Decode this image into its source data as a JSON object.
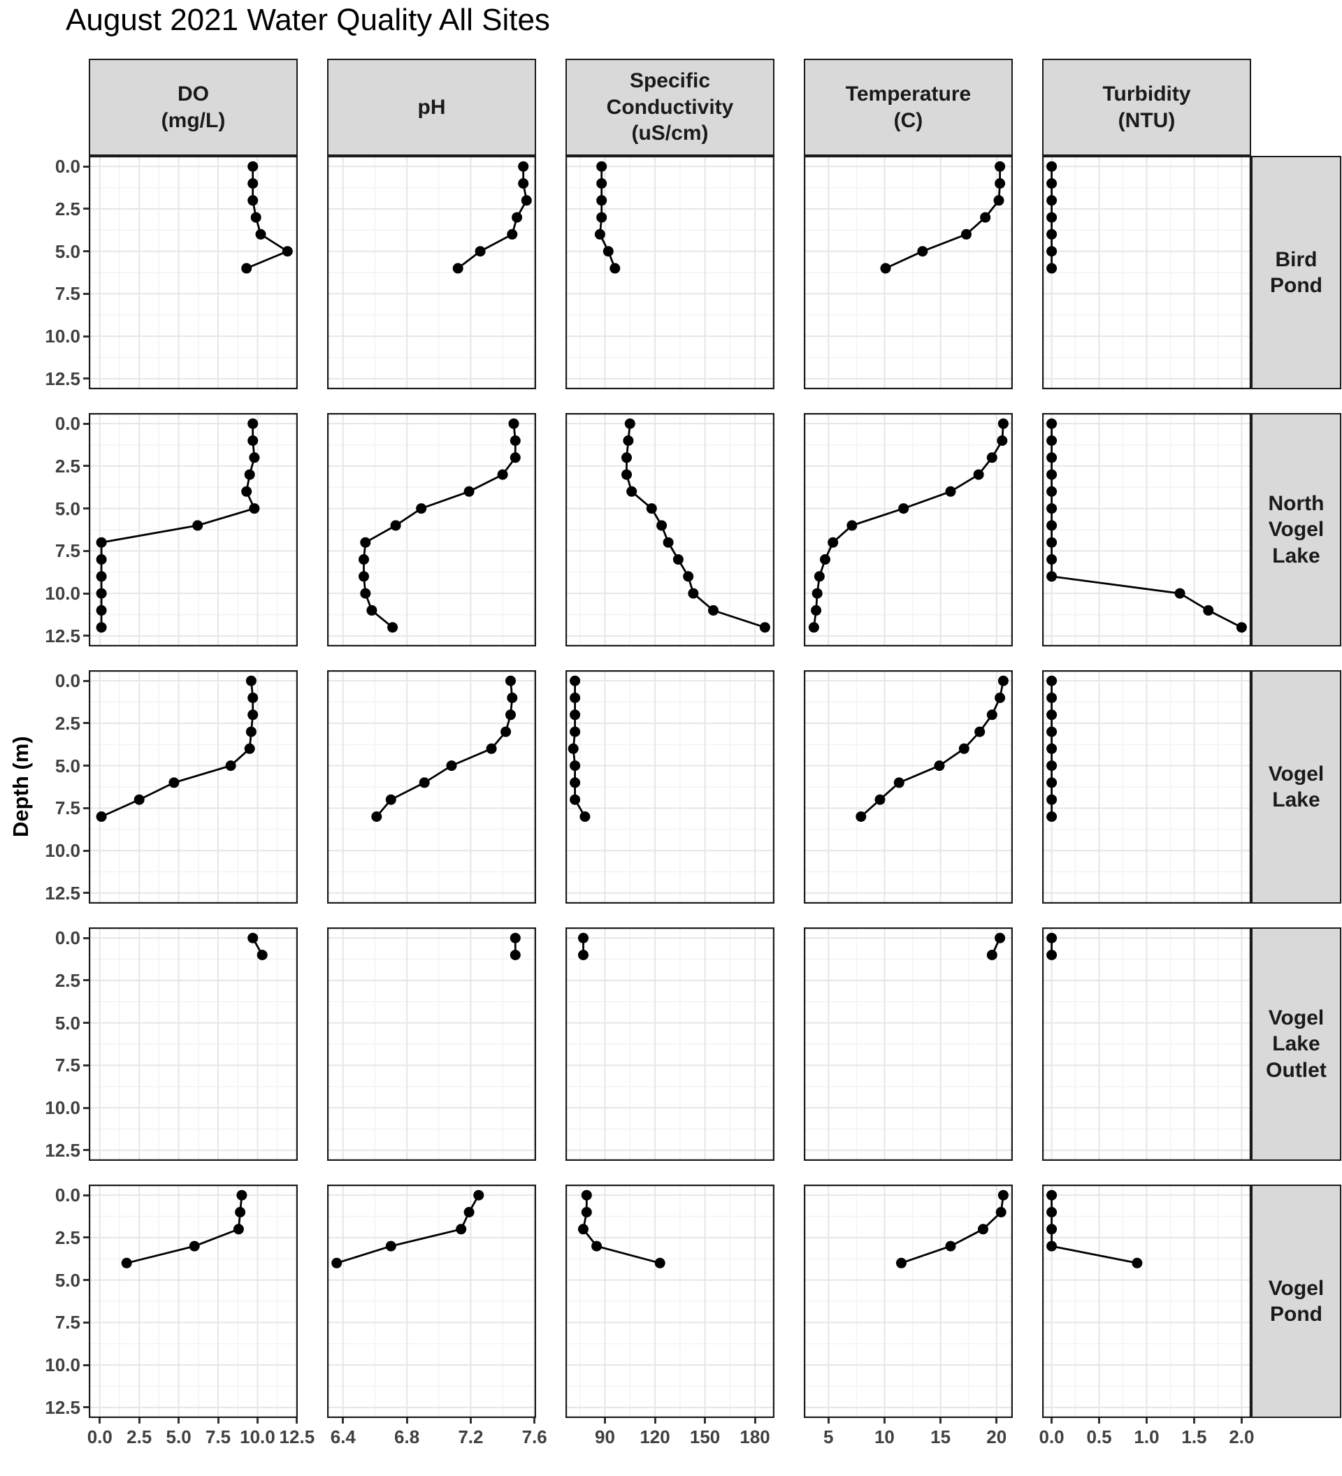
{
  "page": {
    "title": "August 2021 Water Quality All Sites"
  },
  "style": {
    "strip_bg": "#d9d9d9",
    "panel_bg": "#ffffff",
    "panel_border": "#1a1a1a",
    "grid_major": "#e6e6e6",
    "grid_minor": "#f4f4f4",
    "point_color": "#000000",
    "line_color": "#000000",
    "tick_label_color": "#404040"
  },
  "chart_data": {
    "type": "line",
    "title": "August 2021 Water Quality All Sites",
    "subtitle": "",
    "facet": "sites as rows, parameters as columns; depth profiles with points and connecting lines",
    "ylabel": "Depth (m)",
    "legend": "none",
    "grid": "major and minor gridlines on, light gray",
    "depth_axis": {
      "label": "Depth (m)",
      "ticks": [
        0.0,
        2.5,
        5.0,
        7.5,
        10.0,
        12.5
      ],
      "tick_labels": [
        "0.0",
        "2.5",
        "5.0",
        "7.5",
        "10.0",
        "12.5"
      ],
      "minor_ticks": [
        1.25,
        3.75,
        6.25,
        8.75,
        11.25
      ],
      "domain": [
        -0.625,
        13.125
      ],
      "inverted": true
    },
    "parameters": [
      {
        "key": "do",
        "label_lines": [
          "DO",
          "(mg/L)"
        ],
        "ticks": [
          0.0,
          2.5,
          5.0,
          7.5,
          10.0,
          12.5
        ],
        "tick_labels": [
          "0.0",
          "2.5",
          "5.0",
          "7.5",
          "10.0",
          "12.5"
        ],
        "minor_ticks": [
          1.25,
          3.75,
          6.25,
          8.75,
          11.25
        ],
        "domain": [
          -0.7,
          12.55
        ]
      },
      {
        "key": "ph",
        "label_lines": [
          "pH"
        ],
        "ticks": [
          6.4,
          6.8,
          7.2,
          7.6
        ],
        "tick_labels": [
          "6.4",
          "6.8",
          "7.2",
          "7.6"
        ],
        "minor_ticks": [
          6.6,
          7.0,
          7.4
        ],
        "domain": [
          6.3,
          7.61
        ]
      },
      {
        "key": "cond",
        "label_lines": [
          "Specific",
          "Conductivity",
          "(uS/cm)"
        ],
        "ticks": [
          90,
          120,
          150,
          180
        ],
        "tick_labels": [
          "90",
          "120",
          "150",
          "180"
        ],
        "minor_ticks": [
          75,
          105,
          135,
          165
        ],
        "domain": [
          66.3,
          191.7
        ]
      },
      {
        "key": "temp",
        "label_lines": [
          "Temperature",
          "(C)"
        ],
        "ticks": [
          5,
          10,
          15,
          20
        ],
        "tick_labels": [
          "5",
          "10",
          "15",
          "20"
        ],
        "minor_ticks": [
          7.5,
          12.5,
          17.5
        ],
        "domain": [
          2.8,
          21.45
        ]
      },
      {
        "key": "turb",
        "label_lines": [
          "Turbidity",
          "(NTU)"
        ],
        "ticks": [
          0.0,
          0.5,
          1.0,
          1.5,
          2.0
        ],
        "tick_labels": [
          "0.0",
          "0.5",
          "1.0",
          "1.5",
          "2.0"
        ],
        "minor_ticks": [
          0.25,
          0.75,
          1.25,
          1.75
        ],
        "domain": [
          -0.1,
          2.1
        ]
      }
    ],
    "sites": [
      {
        "name": "Bird Pond",
        "name_lines": [
          "Bird",
          "Pond"
        ],
        "depths": [
          0,
          1,
          2,
          3,
          4,
          5,
          6
        ],
        "do": [
          9.7,
          9.7,
          9.7,
          9.9,
          10.2,
          11.9,
          9.3
        ],
        "ph": [
          7.53,
          7.53,
          7.55,
          7.49,
          7.46,
          7.26,
          7.12
        ],
        "cond": [
          88,
          88,
          88,
          88,
          87,
          92,
          96
        ],
        "temp": [
          20.3,
          20.3,
          20.2,
          19.0,
          17.3,
          13.4,
          10.1
        ],
        "turb": [
          0,
          0,
          0,
          0,
          0,
          0,
          0
        ]
      },
      {
        "name": "North Vogel Lake",
        "name_lines": [
          "North",
          "Vogel",
          "Lake"
        ],
        "depths": [
          0,
          1,
          2,
          3,
          4,
          5,
          6,
          7,
          8,
          9,
          10,
          11,
          12
        ],
        "do": [
          9.7,
          9.7,
          9.8,
          9.5,
          9.3,
          9.8,
          6.2,
          0.1,
          0.1,
          0.1,
          0.1,
          0.1,
          0.1
        ],
        "ph": [
          7.47,
          7.48,
          7.48,
          7.4,
          7.19,
          6.89,
          6.73,
          6.54,
          6.53,
          6.53,
          6.54,
          6.58,
          6.71
        ],
        "cond": [
          105,
          104,
          103,
          103,
          106,
          118,
          124,
          128,
          134,
          140,
          143,
          155,
          186
        ],
        "temp": [
          20.6,
          20.5,
          19.6,
          18.4,
          15.9,
          11.7,
          7.1,
          5.4,
          4.7,
          4.2,
          4.0,
          3.9,
          3.7
        ],
        "turb": [
          0,
          0,
          0,
          0,
          0,
          0,
          0,
          0,
          0,
          0,
          1.35,
          1.65,
          2.0
        ]
      },
      {
        "name": "Vogel Lake",
        "name_lines": [
          "Vogel",
          "Lake"
        ],
        "depths": [
          0,
          1,
          2,
          3,
          4,
          5,
          6,
          7,
          8
        ],
        "do": [
          9.6,
          9.7,
          9.7,
          9.6,
          9.5,
          8.3,
          4.7,
          2.5,
          0.1
        ],
        "ph": [
          7.45,
          7.46,
          7.45,
          7.42,
          7.33,
          7.08,
          6.91,
          6.7,
          6.61
        ],
        "cond": [
          72,
          72,
          72,
          72,
          71,
          72,
          72,
          72,
          78
        ],
        "temp": [
          20.6,
          20.3,
          19.6,
          18.5,
          17.1,
          14.9,
          11.3,
          9.6,
          7.9
        ],
        "turb": [
          0,
          0,
          0,
          0,
          0,
          0,
          0,
          0,
          0
        ]
      },
      {
        "name": "Vogel Lake Outlet",
        "name_lines": [
          "Vogel",
          "Lake",
          "Outlet"
        ],
        "depths": [
          0,
          1
        ],
        "do": [
          9.7,
          10.3
        ],
        "ph": [
          7.48,
          7.48
        ],
        "cond": [
          77,
          77
        ],
        "temp": [
          20.3,
          19.6
        ],
        "turb": [
          0,
          0
        ]
      },
      {
        "name": "Vogel Pond",
        "name_lines": [
          "Vogel",
          "Pond"
        ],
        "depths": [
          0,
          1,
          2,
          3,
          4
        ],
        "do": [
          9.0,
          8.9,
          8.8,
          6.0,
          1.7
        ],
        "ph": [
          7.25,
          7.19,
          7.14,
          6.7,
          6.36
        ],
        "cond": [
          79,
          79,
          77,
          85,
          123
        ],
        "temp": [
          20.6,
          20.4,
          18.8,
          15.9,
          11.5
        ],
        "turb": [
          0,
          0,
          0,
          0,
          0.9
        ]
      }
    ]
  }
}
